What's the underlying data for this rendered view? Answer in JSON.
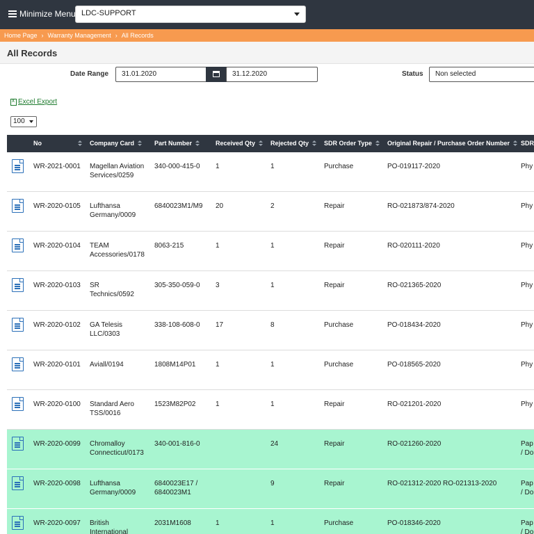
{
  "topbar": {
    "menu_label": "Minimize Menu",
    "company": "LDC-SUPPORT"
  },
  "breadcrumb": [
    "Home Page",
    "Warranty Management",
    "All Records"
  ],
  "page": {
    "title": "All Records"
  },
  "filters": {
    "date_range_label": "Date Range",
    "date_from": "31.01.2020",
    "date_to": "31.12.2020",
    "status_label": "Status",
    "status_value": "Non selected"
  },
  "excel_export": "Excel Export",
  "page_size": "100",
  "table": {
    "columns": [
      "No",
      "Company Card",
      "Part Number",
      "Received Qty",
      "Rejected Qty",
      "SDR Order Type",
      "Original Repair / Purchase Order Number",
      "SDR"
    ],
    "rows": [
      {
        "no": "WR-2021-0001",
        "company": [
          "Magellan Aviation",
          "Services/0259"
        ],
        "part": [
          "340-000-415-0"
        ],
        "received": "1",
        "rejected": "1",
        "type": "Purchase",
        "order": "PO-019117-2020",
        "sdr": [
          "Phy"
        ],
        "highlight": false
      },
      {
        "no": "WR-2020-0105",
        "company": [
          "Lufthansa",
          "Germany/0009"
        ],
        "part": [
          "6840023M1/M9"
        ],
        "received": "20",
        "rejected": "2",
        "type": "Repair",
        "order": "RO-021873/874-2020",
        "sdr": [
          "Phy"
        ],
        "highlight": false
      },
      {
        "no": "WR-2020-0104",
        "company": [
          "TEAM",
          "Accessories/0178"
        ],
        "part": [
          "8063-215"
        ],
        "received": "1",
        "rejected": "1",
        "type": "Repair",
        "order": "RO-020111-2020",
        "sdr": [
          "Phy"
        ],
        "highlight": false
      },
      {
        "no": "WR-2020-0103",
        "company": [
          "SR",
          "Technics/0592"
        ],
        "part": [
          "305-350-059-0"
        ],
        "received": "3",
        "rejected": "1",
        "type": "Repair",
        "order": "RO-021365-2020",
        "sdr": [
          "Phy"
        ],
        "highlight": false
      },
      {
        "no": "WR-2020-0102",
        "company": [
          "GA Telesis",
          "LLC/0303"
        ],
        "part": [
          "338-108-608-0"
        ],
        "received": "17",
        "rejected": "8",
        "type": "Purchase",
        "order": "PO-018434-2020",
        "sdr": [
          "Phy"
        ],
        "highlight": false
      },
      {
        "no": "WR-2020-0101",
        "company": [
          "Aviall/0194"
        ],
        "part": [
          "1808M14P01"
        ],
        "received": "1",
        "rejected": "1",
        "type": "Purchase",
        "order": "PO-018565-2020",
        "sdr": [
          "Phy"
        ],
        "highlight": false
      },
      {
        "no": "WR-2020-0100",
        "company": [
          "Standard Aero",
          "TSS/0016"
        ],
        "part": [
          "1523M82P02"
        ],
        "received": "1",
        "rejected": "1",
        "type": "Repair",
        "order": "RO-021201-2020",
        "sdr": [
          "Phy"
        ],
        "highlight": false
      },
      {
        "no": "WR-2020-0099",
        "company": [
          "Chromalloy",
          "Connecticut/0173"
        ],
        "part": [
          "340-001-816-0"
        ],
        "received": "",
        "rejected": "24",
        "type": "Repair",
        "order": "RO-021260-2020",
        "sdr": [
          "Pap",
          "/ Do"
        ],
        "highlight": true
      },
      {
        "no": "WR-2020-0098",
        "company": [
          "Lufthansa",
          "Germany/0009"
        ],
        "part": [
          "6840023E17 /",
          "6840023M1"
        ],
        "received": "",
        "rejected": "9",
        "type": "Repair",
        "order": "RO-021312-2020 RO-021313-2020",
        "sdr": [
          "Pap",
          "/ Do"
        ],
        "highlight": true
      },
      {
        "no": "WR-2020-0097",
        "company": [
          "British",
          "International"
        ],
        "part": [
          "2031M1608"
        ],
        "received": "1",
        "rejected": "1",
        "type": "Purchase",
        "order": "PO-018346-2020",
        "sdr": [
          "Pap",
          "/ Do"
        ],
        "highlight": true
      }
    ]
  },
  "colors": {
    "topbar": "#2f3640",
    "breadcrumb": "#f79a4f",
    "highlight_row": "#a8f5d0",
    "doc_icon": "#2a6fb8",
    "export_link": "#1c7a2c"
  }
}
